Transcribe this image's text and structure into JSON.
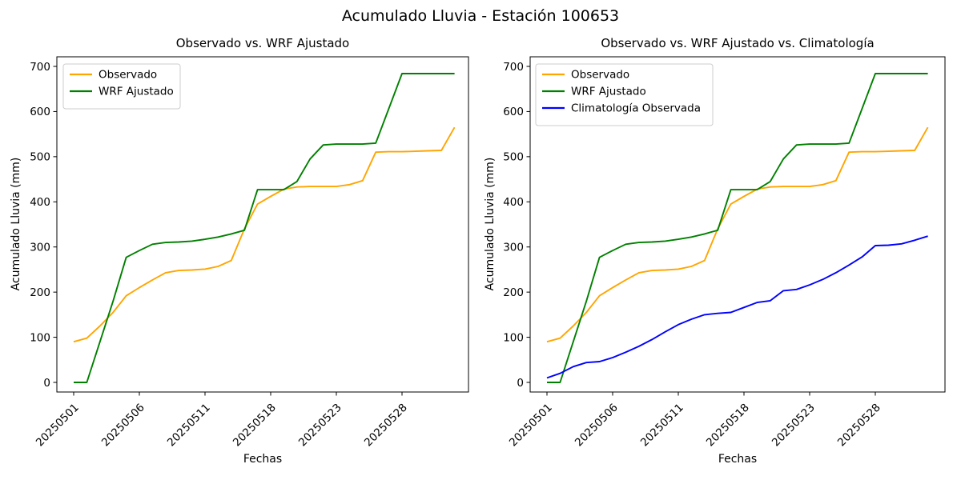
{
  "figure_title": "Acumulado Lluvia - Estación 100653",
  "chart_data": [
    {
      "type": "line",
      "title": "Observado vs. WRF Ajustado",
      "xlabel": "Fechas",
      "ylabel": "Acumulado Lluvia (mm)",
      "ylim": [
        0,
        700
      ],
      "yticks": [
        0,
        100,
        200,
        300,
        400,
        500,
        600,
        700
      ],
      "xticks": {
        "positions": [
          0,
          5,
          10,
          15,
          20,
          25
        ],
        "labels": [
          "20250501",
          "20250506",
          "20250511",
          "20250518",
          "20250523",
          "20250528"
        ]
      },
      "grid": false,
      "legend_position": "upper left",
      "series": [
        {
          "name": "Observado",
          "color": "#FFA500",
          "values": [
            90,
            98,
            125,
            155,
            192,
            210,
            227,
            243,
            248,
            249,
            251,
            257,
            270,
            340,
            395,
            412,
            428,
            433,
            434,
            434,
            434,
            438,
            447,
            510,
            511,
            511,
            512,
            513,
            514,
            565
          ]
        },
        {
          "name": "WRF Ajustado",
          "color": "#008000",
          "values": [
            0,
            0,
            90,
            180,
            277,
            292,
            306,
            310,
            311,
            313,
            317,
            322,
            329,
            337,
            427,
            427,
            427,
            445,
            495,
            526,
            528,
            528,
            528,
            530,
            607,
            684,
            684,
            684,
            684,
            684
          ]
        }
      ]
    },
    {
      "type": "line",
      "title": "Observado vs. WRF Ajustado vs. Climatología",
      "xlabel": "Fechas",
      "ylabel": "Acumulado Lluvia (mm)",
      "ylim": [
        0,
        700
      ],
      "yticks": [
        0,
        100,
        200,
        300,
        400,
        500,
        600,
        700
      ],
      "xticks": {
        "positions": [
          0,
          5,
          10,
          15,
          20,
          25
        ],
        "labels": [
          "20250501",
          "20250506",
          "20250511",
          "20250518",
          "20250523",
          "20250528"
        ]
      },
      "grid": false,
      "legend_position": "upper left",
      "series": [
        {
          "name": "Observado",
          "color": "#FFA500",
          "values": [
            90,
            98,
            125,
            155,
            192,
            210,
            227,
            243,
            248,
            249,
            251,
            257,
            270,
            340,
            395,
            412,
            428,
            433,
            434,
            434,
            434,
            438,
            447,
            510,
            511,
            511,
            512,
            513,
            514,
            565
          ]
        },
        {
          "name": "WRF Ajustado",
          "color": "#008000",
          "values": [
            0,
            0,
            90,
            180,
            277,
            292,
            306,
            310,
            311,
            313,
            317,
            322,
            329,
            337,
            427,
            427,
            427,
            445,
            495,
            526,
            528,
            528,
            528,
            530,
            607,
            684,
            684,
            684,
            684,
            684
          ]
        },
        {
          "name": "Climatología Observada",
          "color": "#0000FF",
          "values": [
            10,
            20,
            35,
            44,
            46,
            55,
            67,
            80,
            95,
            112,
            128,
            140,
            150,
            153,
            155,
            166,
            177,
            181,
            203,
            206,
            216,
            228,
            243,
            260,
            278,
            303,
            304,
            307,
            315,
            324
          ]
        }
      ]
    }
  ]
}
